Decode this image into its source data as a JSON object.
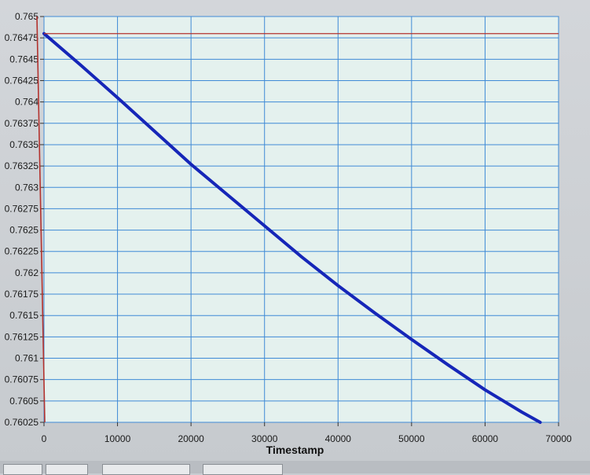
{
  "chart_data": {
    "type": "line",
    "xlabel": "Timestamp",
    "ylabel": "",
    "title": "",
    "xlim": [
      0,
      70000
    ],
    "ylim": [
      0.76025,
      0.765
    ],
    "x_ticks": [
      "0",
      "10000",
      "20000",
      "30000",
      "40000",
      "50000",
      "60000",
      "70000"
    ],
    "y_ticks": [
      "0.765",
      "0.76475",
      "0.7645",
      "0.76425",
      "0.764",
      "0.76375",
      "0.7635",
      "0.76325",
      "0.763",
      "0.76275",
      "0.7625",
      "0.76225",
      "0.762",
      "0.76175",
      "0.7615",
      "0.76125",
      "0.761",
      "0.76075",
      "0.7605",
      "0.76025"
    ],
    "grid": true,
    "cursor": {
      "x": 0,
      "y": 0.7648,
      "color": "#b3322e"
    },
    "series": [
      {
        "color": "#1626b8",
        "x": [
          0,
          5000,
          10000,
          15000,
          20000,
          25000,
          30000,
          35000,
          40000,
          45000,
          50000,
          55000,
          60000,
          65000,
          67500
        ],
        "y": [
          0.7648,
          0.76443,
          0.76405,
          0.76366,
          0.76327,
          0.76291,
          0.76255,
          0.76219,
          0.76185,
          0.76153,
          0.76122,
          0.76092,
          0.76063,
          0.76037,
          0.76025
        ]
      }
    ]
  }
}
